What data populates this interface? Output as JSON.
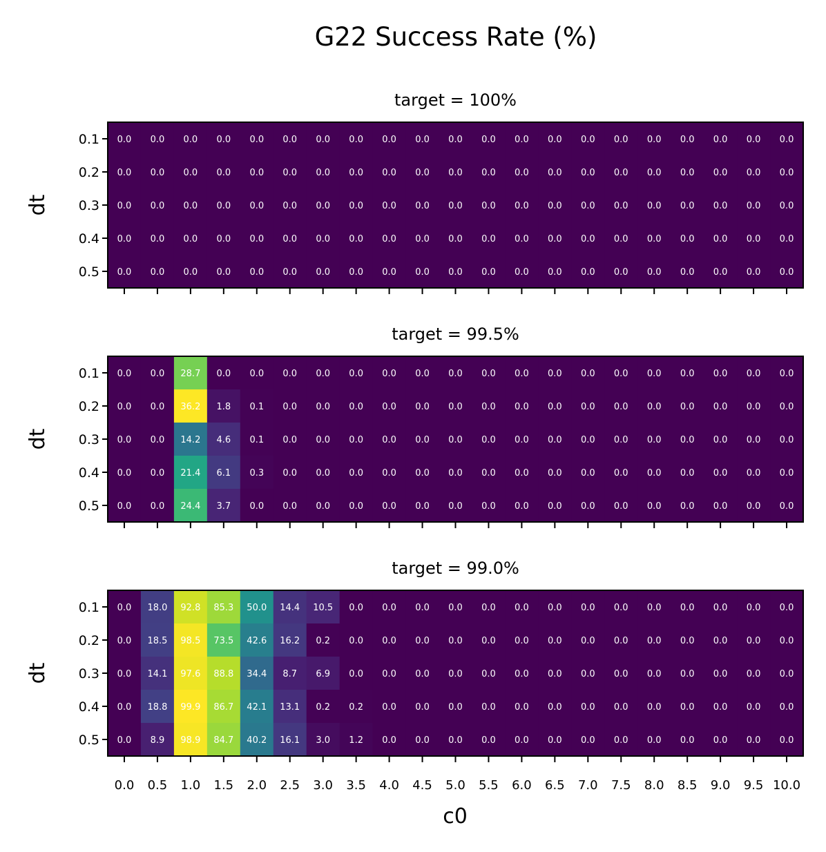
{
  "chart_data": {
    "type": "heatmap",
    "title": "G22 Success Rate (%)",
    "xlabel": "c0",
    "ylabel": "dt",
    "x": [
      "0.0",
      "0.5",
      "1.0",
      "1.5",
      "2.0",
      "2.5",
      "3.0",
      "3.5",
      "4.0",
      "4.5",
      "5.0",
      "5.5",
      "6.0",
      "6.5",
      "7.0",
      "7.5",
      "8.0",
      "8.5",
      "9.0",
      "9.5",
      "10.0"
    ],
    "y": [
      "0.1",
      "0.2",
      "0.3",
      "0.4",
      "0.5"
    ],
    "colormap": "viridis",
    "panels": [
      {
        "subtitle": "target = 100%",
        "show_xticklabels": false,
        "values": [
          [
            0,
            0,
            0,
            0,
            0,
            0,
            0,
            0,
            0,
            0,
            0,
            0,
            0,
            0,
            0,
            0,
            0,
            0,
            0,
            0,
            0
          ],
          [
            0,
            0,
            0,
            0,
            0,
            0,
            0,
            0,
            0,
            0,
            0,
            0,
            0,
            0,
            0,
            0,
            0,
            0,
            0,
            0,
            0
          ],
          [
            0,
            0,
            0,
            0,
            0,
            0,
            0,
            0,
            0,
            0,
            0,
            0,
            0,
            0,
            0,
            0,
            0,
            0,
            0,
            0,
            0
          ],
          [
            0,
            0,
            0,
            0,
            0,
            0,
            0,
            0,
            0,
            0,
            0,
            0,
            0,
            0,
            0,
            0,
            0,
            0,
            0,
            0,
            0
          ],
          [
            0,
            0,
            0,
            0,
            0,
            0,
            0,
            0,
            0,
            0,
            0,
            0,
            0,
            0,
            0,
            0,
            0,
            0,
            0,
            0,
            0
          ]
        ]
      },
      {
        "subtitle": "target = 99.5%",
        "show_xticklabels": false,
        "values": [
          [
            0,
            0,
            28.7,
            0,
            0,
            0,
            0,
            0,
            0,
            0,
            0,
            0,
            0,
            0,
            0,
            0,
            0,
            0,
            0,
            0,
            0
          ],
          [
            0,
            0,
            36.2,
            1.8,
            0.1,
            0,
            0,
            0,
            0,
            0,
            0,
            0,
            0,
            0,
            0,
            0,
            0,
            0,
            0,
            0,
            0
          ],
          [
            0,
            0,
            14.2,
            4.6,
            0.1,
            0,
            0,
            0,
            0,
            0,
            0,
            0,
            0,
            0,
            0,
            0,
            0,
            0,
            0,
            0,
            0
          ],
          [
            0,
            0,
            21.4,
            6.1,
            0.3,
            0,
            0,
            0,
            0,
            0,
            0,
            0,
            0,
            0,
            0,
            0,
            0,
            0,
            0,
            0,
            0
          ],
          [
            0,
            0,
            24.4,
            3.7,
            0,
            0,
            0,
            0,
            0,
            0,
            0,
            0,
            0,
            0,
            0,
            0,
            0,
            0,
            0,
            0,
            0
          ]
        ]
      },
      {
        "subtitle": "target = 99.0%",
        "show_xticklabels": true,
        "values": [
          [
            0,
            18.0,
            92.8,
            85.3,
            50.0,
            14.4,
            10.5,
            0,
            0,
            0,
            0,
            0,
            0,
            0,
            0,
            0,
            0,
            0,
            0,
            0,
            0
          ],
          [
            0,
            18.5,
            98.5,
            73.5,
            42.6,
            16.2,
            0.2,
            0,
            0,
            0,
            0,
            0,
            0,
            0,
            0,
            0,
            0,
            0,
            0,
            0,
            0
          ],
          [
            0,
            14.1,
            97.6,
            88.8,
            34.4,
            8.7,
            6.9,
            0,
            0,
            0,
            0,
            0,
            0,
            0,
            0,
            0,
            0,
            0,
            0,
            0,
            0
          ],
          [
            0,
            18.8,
            99.9,
            86.7,
            42.1,
            13.1,
            0.2,
            0.2,
            0,
            0,
            0,
            0,
            0,
            0,
            0,
            0,
            0,
            0,
            0,
            0,
            0
          ],
          [
            0,
            8.9,
            98.9,
            84.7,
            40.2,
            16.1,
            3.0,
            1.2,
            0,
            0,
            0,
            0,
            0,
            0,
            0,
            0,
            0,
            0,
            0,
            0,
            0
          ]
        ]
      }
    ]
  }
}
